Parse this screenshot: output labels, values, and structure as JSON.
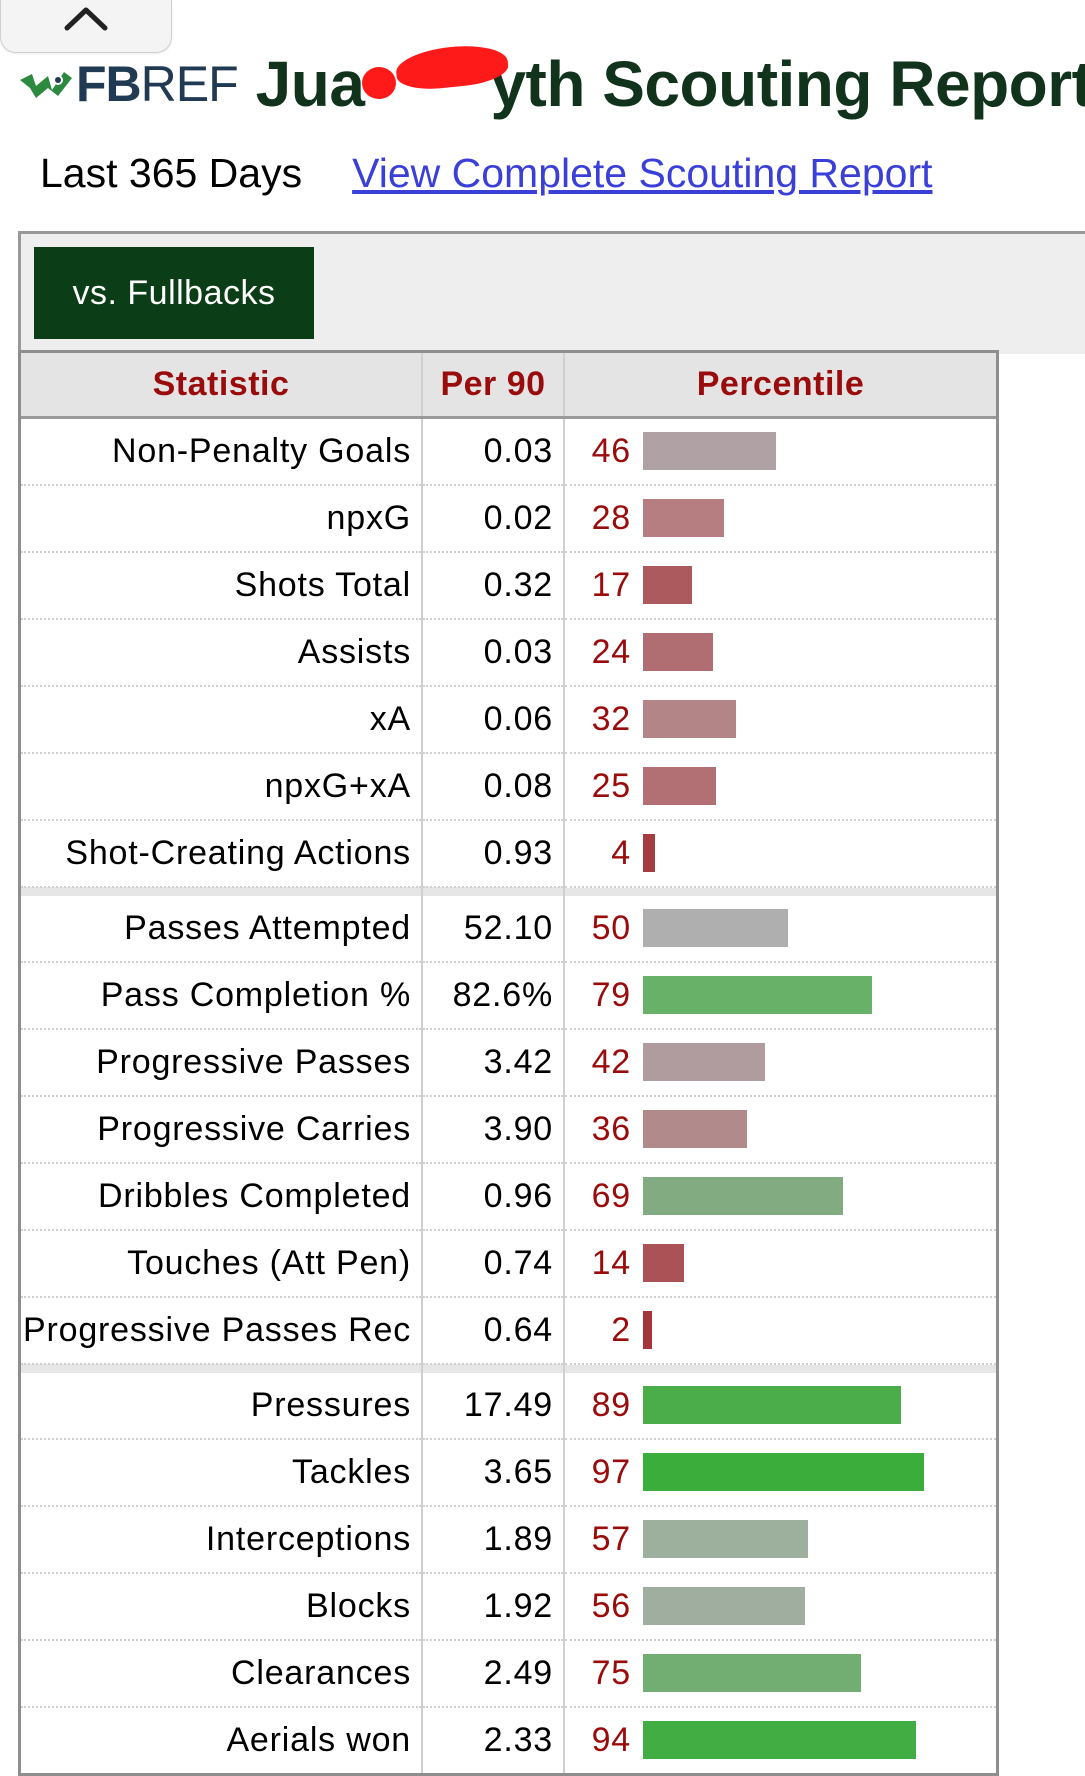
{
  "collapse_icon": "chevron-up-icon",
  "header": {
    "logo_icon": "fbref-logo-icon",
    "logo_fb": "FB",
    "logo_ref": "REF",
    "title": "Jua    yth Scouting Report"
  },
  "subheader": {
    "period": "Last 365 Days",
    "link": "View Complete Scouting Report"
  },
  "filter": {
    "label": "vs. Fullbacks"
  },
  "table": {
    "headers": {
      "statistic": "Statistic",
      "per90": "Per 90",
      "percentile": "Percentile"
    },
    "groups": [
      [
        {
          "stat": "Non-Penalty Goals",
          "per90": "0.03",
          "pct": "46",
          "color": "#b0a2a4"
        },
        {
          "stat": "npxG",
          "per90": "0.02",
          "pct": "28",
          "color": "#b77e82"
        },
        {
          "stat": "Shots Total",
          "per90": "0.32",
          "pct": "17",
          "color": "#ad5a5f"
        },
        {
          "stat": "Assists",
          "per90": "0.03",
          "pct": "24",
          "color": "#b06e72"
        },
        {
          "stat": "xA",
          "per90": "0.06",
          "pct": "32",
          "color": "#b38587"
        },
        {
          "stat": "npxG+xA",
          "per90": "0.08",
          "pct": "25",
          "color": "#b27074"
        },
        {
          "stat": "Shot-Creating Actions",
          "per90": "0.93",
          "pct": "4",
          "color": "#a53c42"
        }
      ],
      [
        {
          "stat": "Passes Attempted",
          "per90": "52.10",
          "pct": "50",
          "color": "#afafaf"
        },
        {
          "stat": "Pass Completion %",
          "per90": "82.6%",
          "pct": "79",
          "color": "#68b168"
        },
        {
          "stat": "Progressive Passes",
          "per90": "3.42",
          "pct": "42",
          "color": "#b09c9e"
        },
        {
          "stat": "Progressive Carries",
          "per90": "3.90",
          "pct": "36",
          "color": "#b18a8c"
        },
        {
          "stat": "Dribbles Completed",
          "per90": "0.96",
          "pct": "69",
          "color": "#82ab82"
        },
        {
          "stat": "Touches (Att Pen)",
          "per90": "0.74",
          "pct": "14",
          "color": "#ab5256"
        },
        {
          "stat": "Progressive Passes Rec",
          "per90": "0.64",
          "pct": "2",
          "color": "#a6353b"
        }
      ],
      [
        {
          "stat": "Pressures",
          "per90": "17.49",
          "pct": "89",
          "color": "#4aad4a"
        },
        {
          "stat": "Tackles",
          "per90": "3.65",
          "pct": "97",
          "color": "#3aad3a"
        },
        {
          "stat": "Interceptions",
          "per90": "1.89",
          "pct": "57",
          "color": "#9daf9d"
        },
        {
          "stat": "Blocks",
          "per90": "1.92",
          "pct": "56",
          "color": "#9fae9f"
        },
        {
          "stat": "Clearances",
          "per90": "2.49",
          "pct": "75",
          "color": "#72ae72"
        },
        {
          "stat": "Aerials won",
          "per90": "2.33",
          "pct": "94",
          "color": "#42ad42"
        }
      ]
    ]
  }
}
